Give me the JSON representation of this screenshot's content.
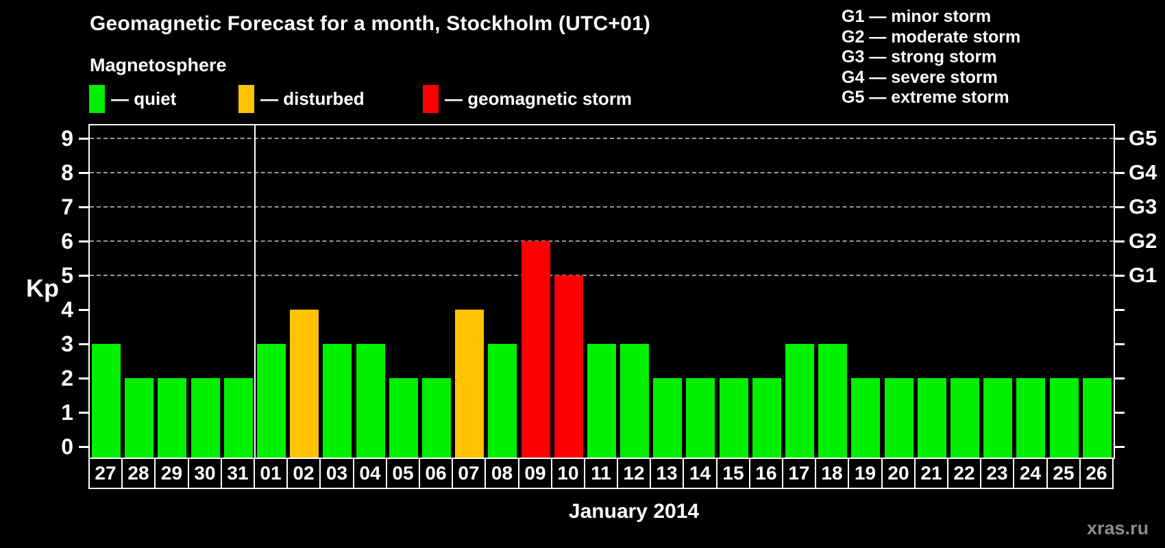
{
  "title": "Geomagnetic Forecast for a month, Stockholm (UTC+01)",
  "subtitle": "Magnetosphere",
  "legend": [
    {
      "key": "quiet",
      "color": "#00f000",
      "label": "— quiet"
    },
    {
      "key": "disturbed",
      "color": "#ffc300",
      "label": "— disturbed"
    },
    {
      "key": "storm",
      "color": "#ff0000",
      "label": "— geomagnetic storm"
    }
  ],
  "g_scale_legend": [
    "G1 — minor storm",
    "G2 — moderate storm",
    "G3 — strong storm",
    "G4 — severe storm",
    "G5 — extreme storm"
  ],
  "watermark": "xras.ru",
  "chart_data": {
    "type": "bar",
    "title": "Geomagnetic Forecast for a month, Stockholm (UTC+01)",
    "xlabel": "January 2014",
    "ylabel": "Kp",
    "categories": [
      "27",
      "28",
      "29",
      "30",
      "31",
      "01",
      "02",
      "03",
      "04",
      "05",
      "06",
      "07",
      "08",
      "09",
      "10",
      "11",
      "12",
      "13",
      "14",
      "15",
      "16",
      "17",
      "18",
      "19",
      "20",
      "21",
      "22",
      "23",
      "24",
      "25",
      "26"
    ],
    "values": [
      3,
      2,
      2,
      2,
      2,
      3,
      4,
      3,
      3,
      2,
      2,
      4,
      3,
      6,
      5,
      3,
      3,
      2,
      2,
      2,
      2,
      3,
      3,
      2,
      2,
      2,
      2,
      2,
      2,
      2,
      2
    ],
    "statuses": [
      "quiet",
      "quiet",
      "quiet",
      "quiet",
      "quiet",
      "quiet",
      "disturbed",
      "quiet",
      "quiet",
      "quiet",
      "quiet",
      "disturbed",
      "quiet",
      "storm",
      "storm",
      "quiet",
      "quiet",
      "quiet",
      "quiet",
      "quiet",
      "quiet",
      "quiet",
      "quiet",
      "quiet",
      "quiet",
      "quiet",
      "quiet",
      "quiet",
      "quiet",
      "quiet",
      "quiet"
    ],
    "status_colors": {
      "quiet": "#00f000",
      "disturbed": "#ffc300",
      "storm": "#ff0000"
    },
    "yticks": [
      0,
      1,
      2,
      3,
      4,
      5,
      6,
      7,
      8,
      9
    ],
    "ylim": [
      0,
      9.3
    ],
    "gridlines_at_kp": [
      5,
      6,
      7,
      8,
      9
    ],
    "right_axis": [
      {
        "label": "G1",
        "kp": 5
      },
      {
        "label": "G2",
        "kp": 6
      },
      {
        "label": "G3",
        "kp": 7
      },
      {
        "label": "G4",
        "kp": 8
      },
      {
        "label": "G5",
        "kp": 9
      }
    ],
    "month_separator_after_index": 4,
    "legend_position": "top-left",
    "grid": "dashed horizontal, Kp 5-9 only"
  }
}
